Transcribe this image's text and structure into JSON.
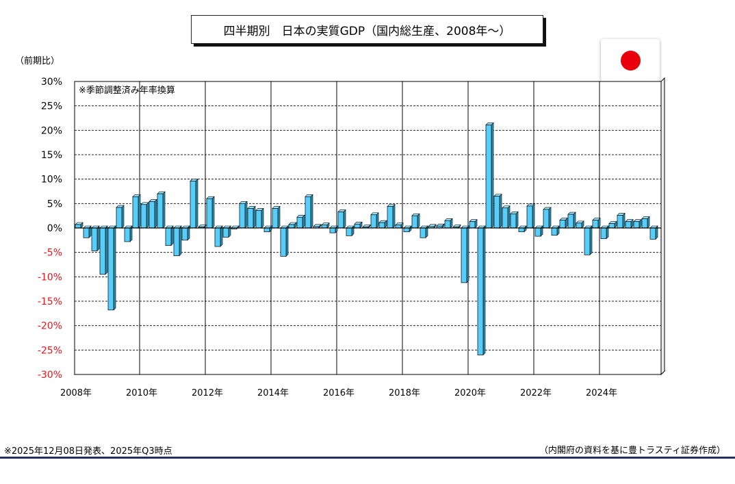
{
  "title": "四半期別　日本の実質GDP（国内総生産、2008年～）",
  "unit_label": "（前期比）",
  "chart_note": "※季節調整済み年率換算",
  "source_note": "※2025年12月08日発表、2025年Q3時点",
  "credit": "（内閣府の資料を基に豊トラスティ証券作成）",
  "flag_icon": "japan-flag-icon",
  "colors": {
    "bar": "#59cdf7",
    "negative_tick": "#e8151b",
    "grid": "#222222",
    "rule": "#1f2f5f"
  },
  "chart_data": {
    "type": "bar",
    "ylim": [
      -30,
      30
    ],
    "yticks": [
      {
        "value": 30,
        "label": "30%"
      },
      {
        "value": 25,
        "label": "25%"
      },
      {
        "value": 20,
        "label": "20%"
      },
      {
        "value": 15,
        "label": "15%"
      },
      {
        "value": 10,
        "label": "10%"
      },
      {
        "value": 5,
        "label": "5%"
      },
      {
        "value": 0,
        "label": "0%"
      },
      {
        "value": -5,
        "label": "-5%"
      },
      {
        "value": -10,
        "label": "-10%"
      },
      {
        "value": -15,
        "label": "-15%"
      },
      {
        "value": -20,
        "label": "-20%"
      },
      {
        "value": -25,
        "label": "-25%"
      },
      {
        "value": -30,
        "label": "-30%"
      }
    ],
    "xticks": [
      "2008年",
      "2010年",
      "2012年",
      "2014年",
      "2016年",
      "2018年",
      "2020年",
      "2022年",
      "2024年"
    ],
    "grid": true,
    "quarters": [
      "2008Q1",
      "2008Q2",
      "2008Q3",
      "2008Q4",
      "2009Q1",
      "2009Q2",
      "2009Q3",
      "2009Q4",
      "2010Q1",
      "2010Q2",
      "2010Q3",
      "2010Q4",
      "2011Q1",
      "2011Q2",
      "2011Q3",
      "2011Q4",
      "2012Q1",
      "2012Q2",
      "2012Q3",
      "2012Q4",
      "2013Q1",
      "2013Q2",
      "2013Q3",
      "2013Q4",
      "2014Q1",
      "2014Q2",
      "2014Q3",
      "2014Q4",
      "2015Q1",
      "2015Q2",
      "2015Q3",
      "2015Q4",
      "2016Q1",
      "2016Q2",
      "2016Q3",
      "2016Q4",
      "2017Q1",
      "2017Q2",
      "2017Q3",
      "2017Q4",
      "2018Q1",
      "2018Q2",
      "2018Q3",
      "2018Q4",
      "2019Q1",
      "2019Q2",
      "2019Q3",
      "2019Q4",
      "2020Q1",
      "2020Q2",
      "2020Q3",
      "2020Q4",
      "2021Q1",
      "2021Q2",
      "2021Q3",
      "2021Q4",
      "2022Q1",
      "2022Q2",
      "2022Q3",
      "2022Q4",
      "2023Q1",
      "2023Q2",
      "2023Q3",
      "2023Q4",
      "2024Q1",
      "2024Q2",
      "2024Q3",
      "2024Q4",
      "2025Q1",
      "2025Q2",
      "2025Q3"
    ],
    "values": [
      0.7,
      -2.0,
      -4.7,
      -9.5,
      -16.8,
      4.2,
      -2.8,
      6.4,
      4.8,
      5.4,
      7.0,
      -3.6,
      -5.7,
      -2.5,
      9.6,
      0.2,
      6.0,
      -3.8,
      -1.9,
      -0.2,
      5.0,
      4.0,
      3.6,
      -0.8,
      4.0,
      -5.8,
      0.7,
      2.2,
      6.4,
      0.3,
      0.6,
      -1.0,
      3.3,
      -1.6,
      0.8,
      0.2,
      2.7,
      1.1,
      4.4,
      0.6,
      -0.8,
      2.5,
      -2.0,
      0.3,
      0.4,
      1.5,
      0.2,
      -11.2,
      1.3,
      -26.0,
      21.1,
      6.5,
      4.1,
      2.9,
      -0.8,
      4.5,
      -1.7,
      3.8,
      -1.5,
      1.6,
      2.8,
      1.0,
      -5.5,
      1.6,
      -2.2,
      0.9,
      2.6,
      1.3,
      1.3,
      1.9,
      -2.3
    ]
  }
}
